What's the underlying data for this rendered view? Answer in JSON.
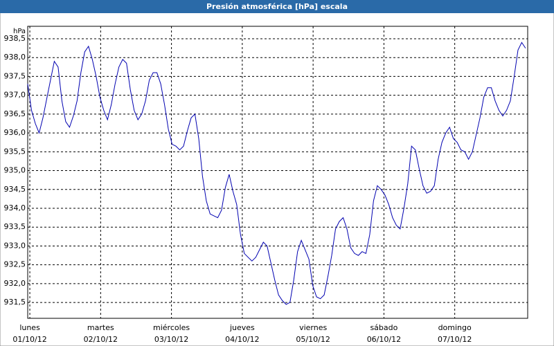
{
  "chart_data": {
    "type": "line",
    "title": "Presión atmosférica [hPa] escala",
    "y_unit": "hPa",
    "xlim": [
      -0.03,
      7.03
    ],
    "xticks": [
      {
        "value": 0,
        "label": "lunes",
        "date": "01/10/12"
      },
      {
        "value": 1,
        "label": "martes",
        "date": "02/10/12"
      },
      {
        "value": 2,
        "label": "miércoles",
        "date": "03/10/12"
      },
      {
        "value": 3,
        "label": "jueves",
        "date": "04/10/12"
      },
      {
        "value": 4,
        "label": "viernes",
        "date": "05/10/12"
      },
      {
        "value": 5,
        "label": "sábado",
        "date": "06/10/12"
      },
      {
        "value": 6,
        "label": "domingo",
        "date": "07/10/12"
      }
    ],
    "ylim": [
      931.08,
      938.83
    ],
    "yticks": [
      {
        "value": 931.5,
        "label": "931,5"
      },
      {
        "value": 932,
        "label": "932,0"
      },
      {
        "value": 932.5,
        "label": "932,5"
      },
      {
        "value": 933,
        "label": "933,0"
      },
      {
        "value": 933.5,
        "label": "933,5"
      },
      {
        "value": 934,
        "label": "934,0"
      },
      {
        "value": 934.5,
        "label": "934,5"
      },
      {
        "value": 935,
        "label": "935,0"
      },
      {
        "value": 935.5,
        "label": "935,5"
      },
      {
        "value": 936,
        "label": "936,0"
      },
      {
        "value": 936.5,
        "label": "936,5"
      },
      {
        "value": 937,
        "label": "937,0"
      },
      {
        "value": 937.5,
        "label": "937,5"
      },
      {
        "value": 938,
        "label": "938,0"
      },
      {
        "value": 938.5,
        "label": "938,5"
      }
    ],
    "grid": true,
    "series": [
      {
        "color": "#0000b0",
        "values": [
          937.3,
          936.6,
          936.25,
          936.0,
          936.4,
          936.9,
          937.4,
          937.9,
          937.75,
          936.85,
          936.3,
          936.15,
          936.45,
          936.85,
          937.6,
          938.15,
          938.3,
          937.95,
          937.5,
          936.95,
          936.6,
          936.35,
          936.75,
          937.3,
          937.75,
          937.95,
          937.85,
          937.15,
          936.6,
          936.35,
          936.5,
          936.85,
          937.4,
          937.6,
          937.6,
          937.3,
          936.75,
          936.1,
          935.7,
          935.65,
          935.55,
          935.65,
          936.05,
          936.4,
          936.5,
          935.85,
          934.85,
          934.2,
          933.85,
          933.8,
          933.75,
          933.95,
          934.55,
          934.9,
          934.45,
          934.1,
          933.3,
          932.8,
          932.7,
          932.6,
          932.7,
          932.9,
          933.1,
          933.0,
          932.55,
          932.1,
          931.7,
          931.55,
          931.45,
          931.5,
          932.1,
          932.85,
          933.15,
          932.9,
          932.65,
          931.95,
          931.65,
          931.6,
          931.7,
          932.2,
          932.75,
          933.45,
          933.65,
          933.75,
          933.45,
          932.95,
          932.8,
          932.75,
          932.85,
          932.8,
          933.3,
          934.2,
          934.6,
          934.5,
          934.35,
          934.1,
          933.75,
          933.55,
          933.45,
          934.0,
          934.65,
          935.65,
          935.55,
          935.05,
          934.6,
          934.4,
          934.45,
          934.6,
          935.3,
          935.75,
          936.0,
          936.15,
          935.85,
          935.75,
          935.55,
          935.5,
          935.3,
          935.5,
          935.95,
          936.4,
          936.95,
          937.2,
          937.2,
          936.85,
          936.6,
          936.45,
          936.6,
          936.85,
          937.5,
          938.2,
          938.4,
          938.25
        ]
      }
    ]
  }
}
